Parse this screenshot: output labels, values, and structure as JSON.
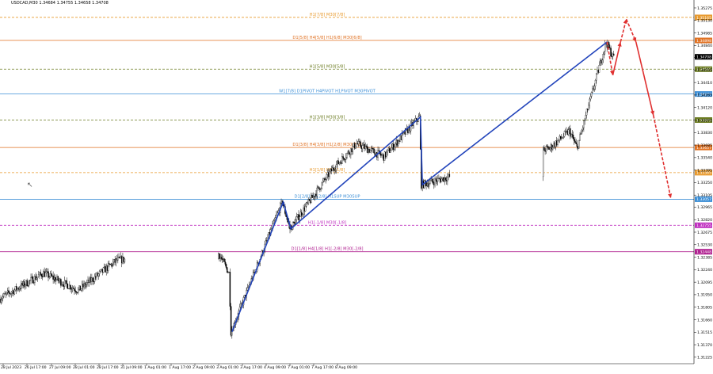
{
  "window": {
    "symbol": "USDCAD,M30",
    "ohlc": [
      "1.34684",
      "1.34755",
      "1.34658",
      "1.34708"
    ]
  },
  "colors": {
    "background": "#ffffff",
    "candle": "#000000",
    "wave_line": "#2244bb",
    "forecast": "#e03030",
    "axis": "#000000"
  },
  "chart_data": {
    "type": "candlestick",
    "price_axis_ticks": [
      "1.35275",
      "1.35130",
      "1.34985",
      "1.34840",
      "1.34700",
      "1.34555",
      "1.34410",
      "1.34265",
      "1.34120",
      "1.33975",
      "1.33830",
      "1.33685",
      "1.33540",
      "1.33395",
      "1.33250",
      "1.33105",
      "1.32965",
      "1.32820",
      "1.32675",
      "1.32530",
      "1.32385",
      "1.32240",
      "1.32095",
      "1.31950",
      "1.31805",
      "1.31660",
      "1.31515",
      "1.31370",
      "1.31225"
    ],
    "time_axis_ticks": [
      "28 Jul 2023",
      "26 Jul 17:00",
      "27 Jul 09:00",
      "28 Jul 01:00",
      "28 Jul 17:00",
      "31 Jul 09:00",
      "1 Aug 01:00",
      "1 Aug 17:00",
      "2 Aug 09:00",
      "3 Aug 01:00",
      "3 Aug 17:00",
      "4 Aug 09:00",
      "7 Aug 01:00",
      "7 Aug 17:00",
      "8 Aug 09:00"
    ],
    "current_price": "1.34708",
    "levels": [
      {
        "label": "H1[7/8] M30[7/8]",
        "price": 1.35165,
        "price_label": "1.35165",
        "color": "#e89a2e",
        "dash": true
      },
      {
        "label": "D1[5/8] H4[5/8] H1[6/8] M30[6/8]",
        "price": 1.34898,
        "price_label": "1.34898",
        "color": "#e07020",
        "dash": false
      },
      {
        "label": "H1[5/8] M30[5/8]",
        "price": 1.34565,
        "price_label": "1.34565",
        "color": "#6b7b20",
        "dash": true
      },
      {
        "label": "W1[7/8] D1PIVOT H4PIVOT H1PIVOT M30PIVOT",
        "price": 1.34277,
        "price_label": "1.34277",
        "color": "#3d8fd6",
        "dash": false
      },
      {
        "label": "H1[3/8] M30[3/8]",
        "price": 1.33975,
        "price_label": "1.33975",
        "color": "#6b7b20",
        "dash": true
      },
      {
        "label": "D1[3/8] H4[3/8] H1[2/8] M30[2/8]",
        "price": 1.33657,
        "price_label": "1.33657",
        "color": "#e07020",
        "dash": false
      },
      {
        "label": "H1[1/8] M30[1/8]",
        "price": 1.33365,
        "price_label": "1.33365",
        "color": "#e89a2e",
        "dash": true
      },
      {
        "label": "D1[2/8] H4[2/8] H1SUP M30SUP",
        "price": 1.33057,
        "price_label": "1.33057",
        "color": "#3d8fd6",
        "dash": false
      },
      {
        "label": "H1[-1/8] M30[-1/8]",
        "price": 1.32755,
        "price_label": "1.32755",
        "color": "#c030c0",
        "dash": true
      },
      {
        "label": "D1[1/8] H4[1/8] H1[-2/8] M30[-2/8]",
        "price": 1.32448,
        "price_label": "1.32448",
        "color": "#b02090",
        "dash": false
      }
    ],
    "wave_lines": [
      {
        "x": [
          "31 Jul 07:00",
          "1 Aug 09:30",
          "1 Aug 13:30",
          "4 Aug 08:30",
          "4 Aug 09:30",
          "8 Aug 09:00"
        ],
        "y": [
          1.3152,
          1.33025,
          1.32715,
          1.3401,
          1.33225,
          1.3488
        ]
      }
    ],
    "forecast_path": [
      {
        "x": "8 Aug 09:00",
        "y": 1.3488,
        "style": "dashed"
      },
      {
        "x": "8 Aug 12:00",
        "y": 1.34495,
        "style": "solid"
      },
      {
        "x": "8 Aug 16:00",
        "y": 1.3488,
        "style": "dashed"
      },
      {
        "x": "8 Aug 19:00",
        "y": 1.35145,
        "style": "dashed"
      },
      {
        "x": "9 Aug 00:00",
        "y": 1.3488,
        "style": "solid"
      },
      {
        "x": "9 Aug 09:00",
        "y": 1.3403,
        "style": "dashed"
      },
      {
        "x": "9 Aug 18:00",
        "y": 1.3307,
        "style": "end"
      }
    ]
  }
}
